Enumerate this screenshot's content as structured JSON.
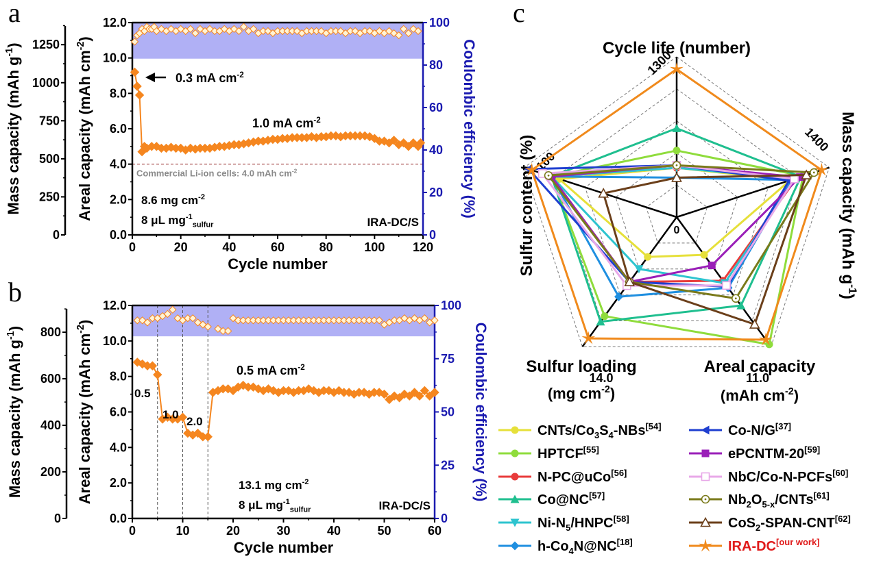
{
  "chart_data": [
    {
      "id": "a",
      "panel_label": "a",
      "type": "line",
      "xlabel": "Cycle number",
      "ylabel_left_outer": "Mass capacity (mAh g-1)",
      "ylabel_left": "Areal capacity (mAh cm-2)",
      "ylabel_right": "Coulombic efficiency (%)",
      "xlim": [
        0,
        120
      ],
      "ylim": [
        0,
        12
      ],
      "ylim_mass": [
        0,
        1395
      ],
      "ylim_right": [
        0,
        100
      ],
      "xticks": [
        "0",
        "20",
        "40",
        "60",
        "80",
        "100",
        "120"
      ],
      "yticks": [
        "0.0",
        "2.0",
        "4.0",
        "6.0",
        "8.0",
        "10.0",
        "12.0"
      ],
      "yticks_mass": [
        "0",
        "250",
        "500",
        "750",
        "1000",
        "1250"
      ],
      "yticks_right": [
        "0",
        "20",
        "40",
        "60",
        "80",
        "100"
      ],
      "ce_band": [
        83,
        100
      ],
      "reference_line": {
        "value": 4.0,
        "label": "Commercial Li-ion cells: 4.0 mAh cm-2"
      },
      "annotations": {
        "rate1": "0.3 mA cm-2",
        "rate2": "1.0 mA cm-2",
        "loading": "8.6 mg cm-2",
        "electrolyte": "8 μL mg-1 sulfur",
        "sample": "IRA-DC/S"
      },
      "series": [
        {
          "name": "Areal capacity",
          "axis": "left",
          "x": [
            1,
            2,
            3,
            4,
            5,
            6,
            8,
            10,
            12,
            14,
            16,
            18,
            20,
            22,
            24,
            26,
            28,
            30,
            32,
            34,
            36,
            38,
            40,
            42,
            44,
            46,
            48,
            50,
            52,
            54,
            56,
            58,
            60,
            62,
            64,
            66,
            68,
            70,
            72,
            74,
            76,
            78,
            80,
            82,
            84,
            86,
            88,
            90,
            92,
            94,
            96,
            98,
            100,
            102,
            104,
            106,
            108,
            110,
            112,
            114,
            116,
            118,
            119
          ],
          "values": [
            9.2,
            8.4,
            7.9,
            4.7,
            5.0,
            4.9,
            5.0,
            5.0,
            4.9,
            4.9,
            4.95,
            4.9,
            4.9,
            4.8,
            4.9,
            4.85,
            4.9,
            4.9,
            4.9,
            4.95,
            5.0,
            5.0,
            5.05,
            5.1,
            5.1,
            5.15,
            5.2,
            5.25,
            5.3,
            5.3,
            5.35,
            5.4,
            5.4,
            5.45,
            5.45,
            5.5,
            5.5,
            5.5,
            5.5,
            5.55,
            5.5,
            5.55,
            5.55,
            5.6,
            5.6,
            5.55,
            5.6,
            5.6,
            5.6,
            5.6,
            5.6,
            5.55,
            5.45,
            5.3,
            5.3,
            5.2,
            5.35,
            5.1,
            5.2,
            5.0,
            5.2,
            5.0,
            5.2
          ]
        },
        {
          "name": "Coulombic efficiency",
          "axis": "right",
          "x": [
            1,
            2,
            3,
            4,
            5,
            6,
            7,
            8,
            9,
            10,
            12,
            14,
            16,
            18,
            20,
            22,
            24,
            26,
            28,
            30,
            32,
            34,
            36,
            38,
            40,
            42,
            44,
            46,
            48,
            50,
            52,
            54,
            56,
            58,
            60,
            62,
            64,
            66,
            68,
            70,
            72,
            74,
            76,
            78,
            80,
            82,
            84,
            86,
            88,
            90,
            92,
            94,
            96,
            98,
            100,
            102,
            104,
            106,
            108,
            110,
            112,
            114,
            116,
            118
          ],
          "values": [
            91,
            94,
            95,
            97,
            96,
            98,
            97,
            97,
            98,
            96,
            97,
            96,
            97,
            96,
            97,
            96,
            97,
            95,
            97,
            96,
            97,
            96,
            96,
            97,
            96,
            97,
            96,
            98,
            96,
            97,
            95,
            96,
            96,
            95,
            96,
            96,
            96,
            96,
            96,
            95,
            96,
            96,
            96,
            96,
            95,
            96,
            96,
            96,
            95,
            96,
            96,
            95,
            96,
            96,
            95,
            96,
            95,
            96,
            95,
            94,
            97,
            95,
            97,
            96
          ]
        }
      ]
    },
    {
      "id": "b",
      "panel_label": "b",
      "type": "line",
      "xlabel": "Cycle number",
      "ylabel_left_outer": "Mass capacity (mAh g-1)",
      "ylabel_left": "Areal capacity (mAh cm-2)",
      "ylabel_right": "Coulombic efficiency (%)",
      "xlim": [
        0,
        60
      ],
      "ylim": [
        0,
        12
      ],
      "ylim_mass": [
        0,
        915
      ],
      "ylim_right": [
        0,
        100
      ],
      "xticks": [
        "0",
        "10",
        "20",
        "30",
        "40",
        "50",
        "60"
      ],
      "yticks": [
        "0.0",
        "2.0",
        "4.0",
        "6.0",
        "8.0",
        "10.0",
        "12.0"
      ],
      "yticks_mass": [
        "0",
        "200",
        "400",
        "600",
        "800"
      ],
      "yticks_right": [
        "0",
        "25",
        "50",
        "75",
        "100"
      ],
      "ce_band": [
        85.5,
        100
      ],
      "rate_dividers": [
        5,
        10,
        15
      ],
      "annotations": {
        "rate_05": "0.5",
        "rate_10": "1.0",
        "rate_20": "2.0",
        "rate_main": "0.5 mA cm-2",
        "loading": "13.1 mg cm-2",
        "electrolyte": "8 μL mg-1 sulfur",
        "sample": "IRA-DC/S"
      },
      "series": [
        {
          "name": "Areal capacity",
          "axis": "left",
          "x": [
            1,
            2,
            3,
            4,
            5,
            6,
            7,
            8,
            9,
            10,
            11,
            12,
            13,
            14,
            15,
            16,
            17,
            18,
            19,
            20,
            21,
            22,
            23,
            24,
            25,
            26,
            27,
            28,
            29,
            30,
            31,
            32,
            33,
            34,
            35,
            36,
            37,
            38,
            39,
            40,
            41,
            42,
            43,
            44,
            45,
            46,
            47,
            48,
            49,
            50,
            51,
            52,
            53,
            54,
            55,
            56,
            57,
            58,
            59,
            60
          ],
          "values": [
            8.8,
            8.7,
            8.6,
            8.6,
            8.1,
            5.6,
            5.7,
            5.6,
            5.6,
            5.7,
            4.8,
            4.7,
            4.8,
            4.6,
            4.6,
            7.1,
            7.2,
            7.3,
            7.3,
            7.2,
            7.4,
            7.5,
            7.4,
            7.4,
            7.3,
            7.2,
            7.3,
            7.2,
            7.1,
            7.2,
            7.2,
            7.1,
            7.2,
            7.2,
            7.3,
            7.2,
            7.1,
            7.2,
            7.2,
            7.1,
            7.2,
            7.1,
            7.1,
            7.0,
            7.1,
            7.1,
            7.0,
            7.1,
            7.1,
            7.0,
            6.7,
            6.9,
            6.8,
            7.0,
            6.9,
            7.1,
            6.9,
            7.2,
            6.9,
            7.1
          ]
        },
        {
          "name": "Coulombic efficiency",
          "axis": "right",
          "x": [
            1,
            2,
            3,
            4,
            5,
            6,
            7,
            8,
            9,
            10,
            11,
            12,
            13,
            14,
            15,
            17,
            18,
            19,
            20,
            21,
            22,
            23,
            24,
            25,
            26,
            27,
            28,
            29,
            30,
            31,
            32,
            33,
            34,
            35,
            36,
            37,
            38,
            39,
            40,
            41,
            42,
            43,
            44,
            45,
            46,
            47,
            48,
            49,
            50,
            51,
            52,
            53,
            54,
            55,
            56,
            57,
            58,
            59,
            60
          ],
          "values": [
            93,
            93,
            92,
            94,
            94,
            95,
            96,
            98,
            94,
            93,
            94,
            94,
            92,
            91,
            90,
            89,
            88,
            88,
            94,
            93,
            93,
            93,
            93,
            93,
            93,
            93,
            93,
            93,
            93,
            93,
            93,
            93,
            93,
            93,
            93,
            93,
            93,
            93,
            93,
            93,
            93,
            93,
            93,
            93,
            93,
            93,
            93,
            93,
            91,
            92,
            93,
            93,
            94,
            93,
            94,
            93,
            94,
            92,
            93
          ]
        }
      ]
    },
    {
      "id": "c",
      "panel_label": "c",
      "type": "radar",
      "axes": [
        {
          "name": "Cycle life (number)",
          "max": 1300,
          "max_label": "1300"
        },
        {
          "name": "Mass capacity (mAh g-1)",
          "max": 1400,
          "max_label": "1400"
        },
        {
          "name": "Areal capacity (mAh cm-2)",
          "max": 11.0,
          "max_label": "11.0"
        },
        {
          "name": "Sulfur loading (mg cm-2)",
          "max": 14.0,
          "max_label": "14.0"
        },
        {
          "name": "Sulfur content (%)",
          "max": 100,
          "max_label": "100"
        }
      ],
      "center_label": "0",
      "grid_levels": 5,
      "series": [
        {
          "name": "CNTs/Co3S4-NBs",
          "ref": "[54]",
          "color": "#e6e03a",
          "marker": "circle",
          "values": [
            400,
            1040,
            3.2,
            4.3,
            77
          ]
        },
        {
          "name": "HPTCF",
          "ref": "[55]",
          "color": "#8fdc3c",
          "marker": "circle",
          "values": [
            540,
            1160,
            10.8,
            10.7,
            82
          ]
        },
        {
          "name": "N-PC@uCo",
          "ref": "[56]",
          "color": "#e83b3b",
          "marker": "circle",
          "values": [
            400,
            1100,
            5.4,
            7.0,
            82
          ]
        },
        {
          "name": "Co@NC",
          "ref": "[57]",
          "color": "#1fbf8f",
          "marker": "triangle-up",
          "values": [
            720,
            1140,
            7.5,
            11.3,
            82
          ]
        },
        {
          "name": "Ni-N5/HNPC",
          "ref": "[58]",
          "color": "#2ec4cf",
          "marker": "triangle-down",
          "values": [
            400,
            1080,
            5.6,
            5.6,
            82
          ]
        },
        {
          "name": "h-Co4N@NC",
          "ref": "[18]",
          "color": "#1f8fe0",
          "marker": "diamond",
          "values": [
            320,
            1050,
            6.0,
            8.6,
            82
          ]
        },
        {
          "name": "Co-N/G",
          "ref": "[37]",
          "color": "#1f3fd0",
          "marker": "triangle-left",
          "values": [
            420,
            1030,
            5.9,
            7.0,
            97
          ]
        },
        {
          "name": "ePCNTM-20",
          "ref": "[59]",
          "color": "#9a1fb8",
          "marker": "square",
          "values": [
            420,
            1130,
            4.1,
            7.0,
            82
          ]
        },
        {
          "name": "NbC/Co-N-PCFs",
          "ref": "[60]",
          "color": "#e8a8e8",
          "marker": "square-open",
          "values": [
            420,
            1080,
            5.8,
            7.4,
            88
          ]
        },
        {
          "name": "Nb2O5-x/CNTs",
          "ref": "[61]",
          "color": "#7a7a1a",
          "marker": "circle-dot",
          "values": [
            420,
            1260,
            6.9,
            7.0,
            84
          ]
        },
        {
          "name": "CoS2-SPAN-CNT",
          "ref": "[62]",
          "color": "#6b3f1a",
          "marker": "triangle-open",
          "values": [
            320,
            1190,
            9.1,
            7.0,
            48
          ]
        },
        {
          "name": "IRA-DC",
          "ref": "[our work]",
          "color": "#f08a1c",
          "marker": "star",
          "values": [
            1200,
            1330,
            10.4,
            13.1,
            95
          ]
        }
      ]
    }
  ]
}
